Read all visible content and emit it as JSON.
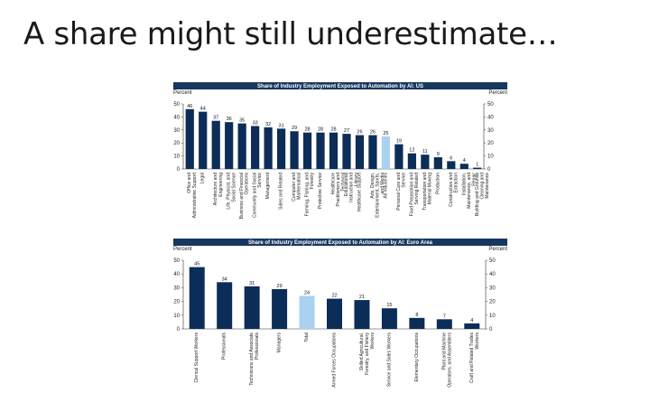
{
  "slide": {
    "title": "A share might still underestimate…"
  },
  "colors": {
    "bar": "#0b2d57",
    "highlight": "#a9d1f0",
    "header": "#17375e"
  },
  "chart_data": [
    {
      "type": "bar",
      "title": "Share of Industry Employment Exposed to Automation by AI: US",
      "ylabel_left": "Percent",
      "ylabel_right": "Percent",
      "ylim": [
        0,
        50
      ],
      "yticks": [
        0,
        10,
        20,
        30,
        40,
        50
      ],
      "grid": false,
      "highlight_category": "All Industries",
      "categories": [
        "Office and Administrative Support",
        "Legal",
        "Architecture and Engineering",
        "Life, Physical, and Social Science",
        "Business and Financial Operations",
        "Community and Social Service",
        "Management",
        "Sales and Related",
        "Computer and Mathematical",
        "Farming, Fishing, and Forestry",
        "Protective Service",
        "Healthcare Practitioners and Technical",
        "Educational Instruction and Library",
        "Healthcare Support",
        "Arts, Design, Entertainment, Sports, and Media",
        "All Industries",
        "Personal Care and Service",
        "Food Preparation and Serving Related",
        "Transportation and Material Moving",
        "Production",
        "Construction and Extraction",
        "Installation, Maintenance, and Repair",
        "Building and Grounds Cleaning and Maintenance"
      ],
      "values": [
        46,
        44,
        37,
        36,
        35,
        33,
        32,
        31,
        29,
        28,
        28,
        28,
        27,
        26,
        26,
        25,
        19,
        12,
        11,
        9,
        6,
        4,
        1
      ]
    },
    {
      "type": "bar",
      "title": "Share of Industry Employment Exposed to Automation by AI: Euro Area",
      "ylabel_left": "Percent",
      "ylabel_right": "Percent",
      "ylim": [
        0,
        50
      ],
      "yticks": [
        0,
        10,
        20,
        30,
        40,
        50
      ],
      "grid": false,
      "highlight_category": "Total",
      "categories": [
        "Clerical Support Workers",
        "Professionals",
        "Technicians and Associate Professionals",
        "Managers",
        "Total",
        "Armed Forces Occupations",
        "Skilled Agricultural, Forestry, and Fishery Workers",
        "Service and Sales Workers",
        "Elementary Occupations",
        "Plant and Machine Operators, and Assemblers",
        "Craft and Related Trades Workers"
      ],
      "values": [
        45,
        34,
        31,
        29,
        24,
        22,
        21,
        15,
        8,
        7,
        4
      ]
    }
  ]
}
